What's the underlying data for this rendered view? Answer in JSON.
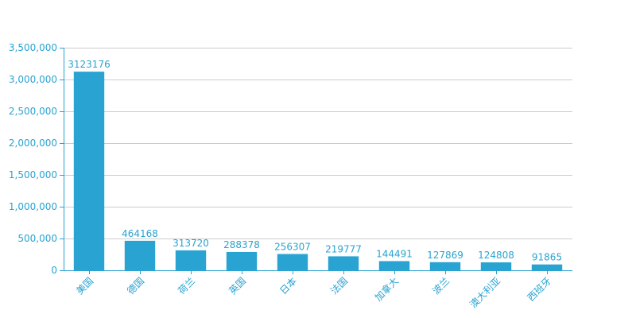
{
  "colors": {
    "bar": "#29a3d1",
    "axis": "#29a3d1",
    "text": "#29a3d1",
    "grid": "#cccccc"
  },
  "chart_data": {
    "type": "bar",
    "title": "",
    "xlabel": "",
    "ylabel": "",
    "grid": true,
    "ylim": [
      0,
      3500000
    ],
    "yticks": [
      0,
      500000,
      1000000,
      1500000,
      2000000,
      2500000,
      3000000,
      3500000
    ],
    "ytick_labels": [
      "0",
      "500,000",
      "1,000,000",
      "1,500,000",
      "2,000,000",
      "2,500,000",
      "3,000,000",
      "3,500,000"
    ],
    "categories": [
      "美国",
      "德国",
      "荷兰",
      "英国",
      "日本",
      "法国",
      "加拿大",
      "波兰",
      "澳大利亚",
      "西班牙"
    ],
    "values": [
      3123176,
      464168,
      313720,
      288378,
      256307,
      219777,
      144491,
      127869,
      124808,
      91865
    ],
    "value_labels": [
      "3123176",
      "464168",
      "313720",
      "288378",
      "256307",
      "219777",
      "144491",
      "127869",
      "124808",
      "91865"
    ]
  }
}
